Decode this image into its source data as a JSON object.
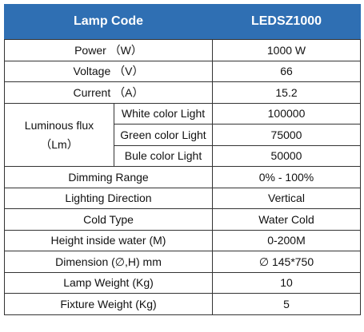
{
  "header": {
    "left": "Lamp Code",
    "right": "LEDSZ1000"
  },
  "rows_top": [
    {
      "label": "Power （W）",
      "value": "1000 W"
    },
    {
      "label": "Voltage （V）",
      "value": "66"
    },
    {
      "label": "Current （A）",
      "value": "15.2"
    }
  ],
  "luminous": {
    "label_line1": "Luminous flux",
    "label_line2": "（Lm）",
    "items": [
      {
        "label": "White color Light",
        "value": "100000"
      },
      {
        "label": "Green color Light",
        "value": "75000"
      },
      {
        "label": "Bule color Light",
        "value": "50000"
      }
    ]
  },
  "rows_bottom": [
    {
      "label": "Dimming Range",
      "value": "0% - 100%"
    },
    {
      "label": "Lighting Direction",
      "value": "Vertical"
    },
    {
      "label": "Cold Type",
      "value": "Water Cold"
    },
    {
      "label": "Height inside water (M)",
      "value": "0-200M"
    },
    {
      "label": "Dimension (∅,H) mm",
      "value": "∅ 145*750"
    },
    {
      "label": "Lamp Weight (Kg)",
      "value": "10"
    },
    {
      "label": "Fixture Weight (Kg)",
      "value": "5"
    }
  ]
}
